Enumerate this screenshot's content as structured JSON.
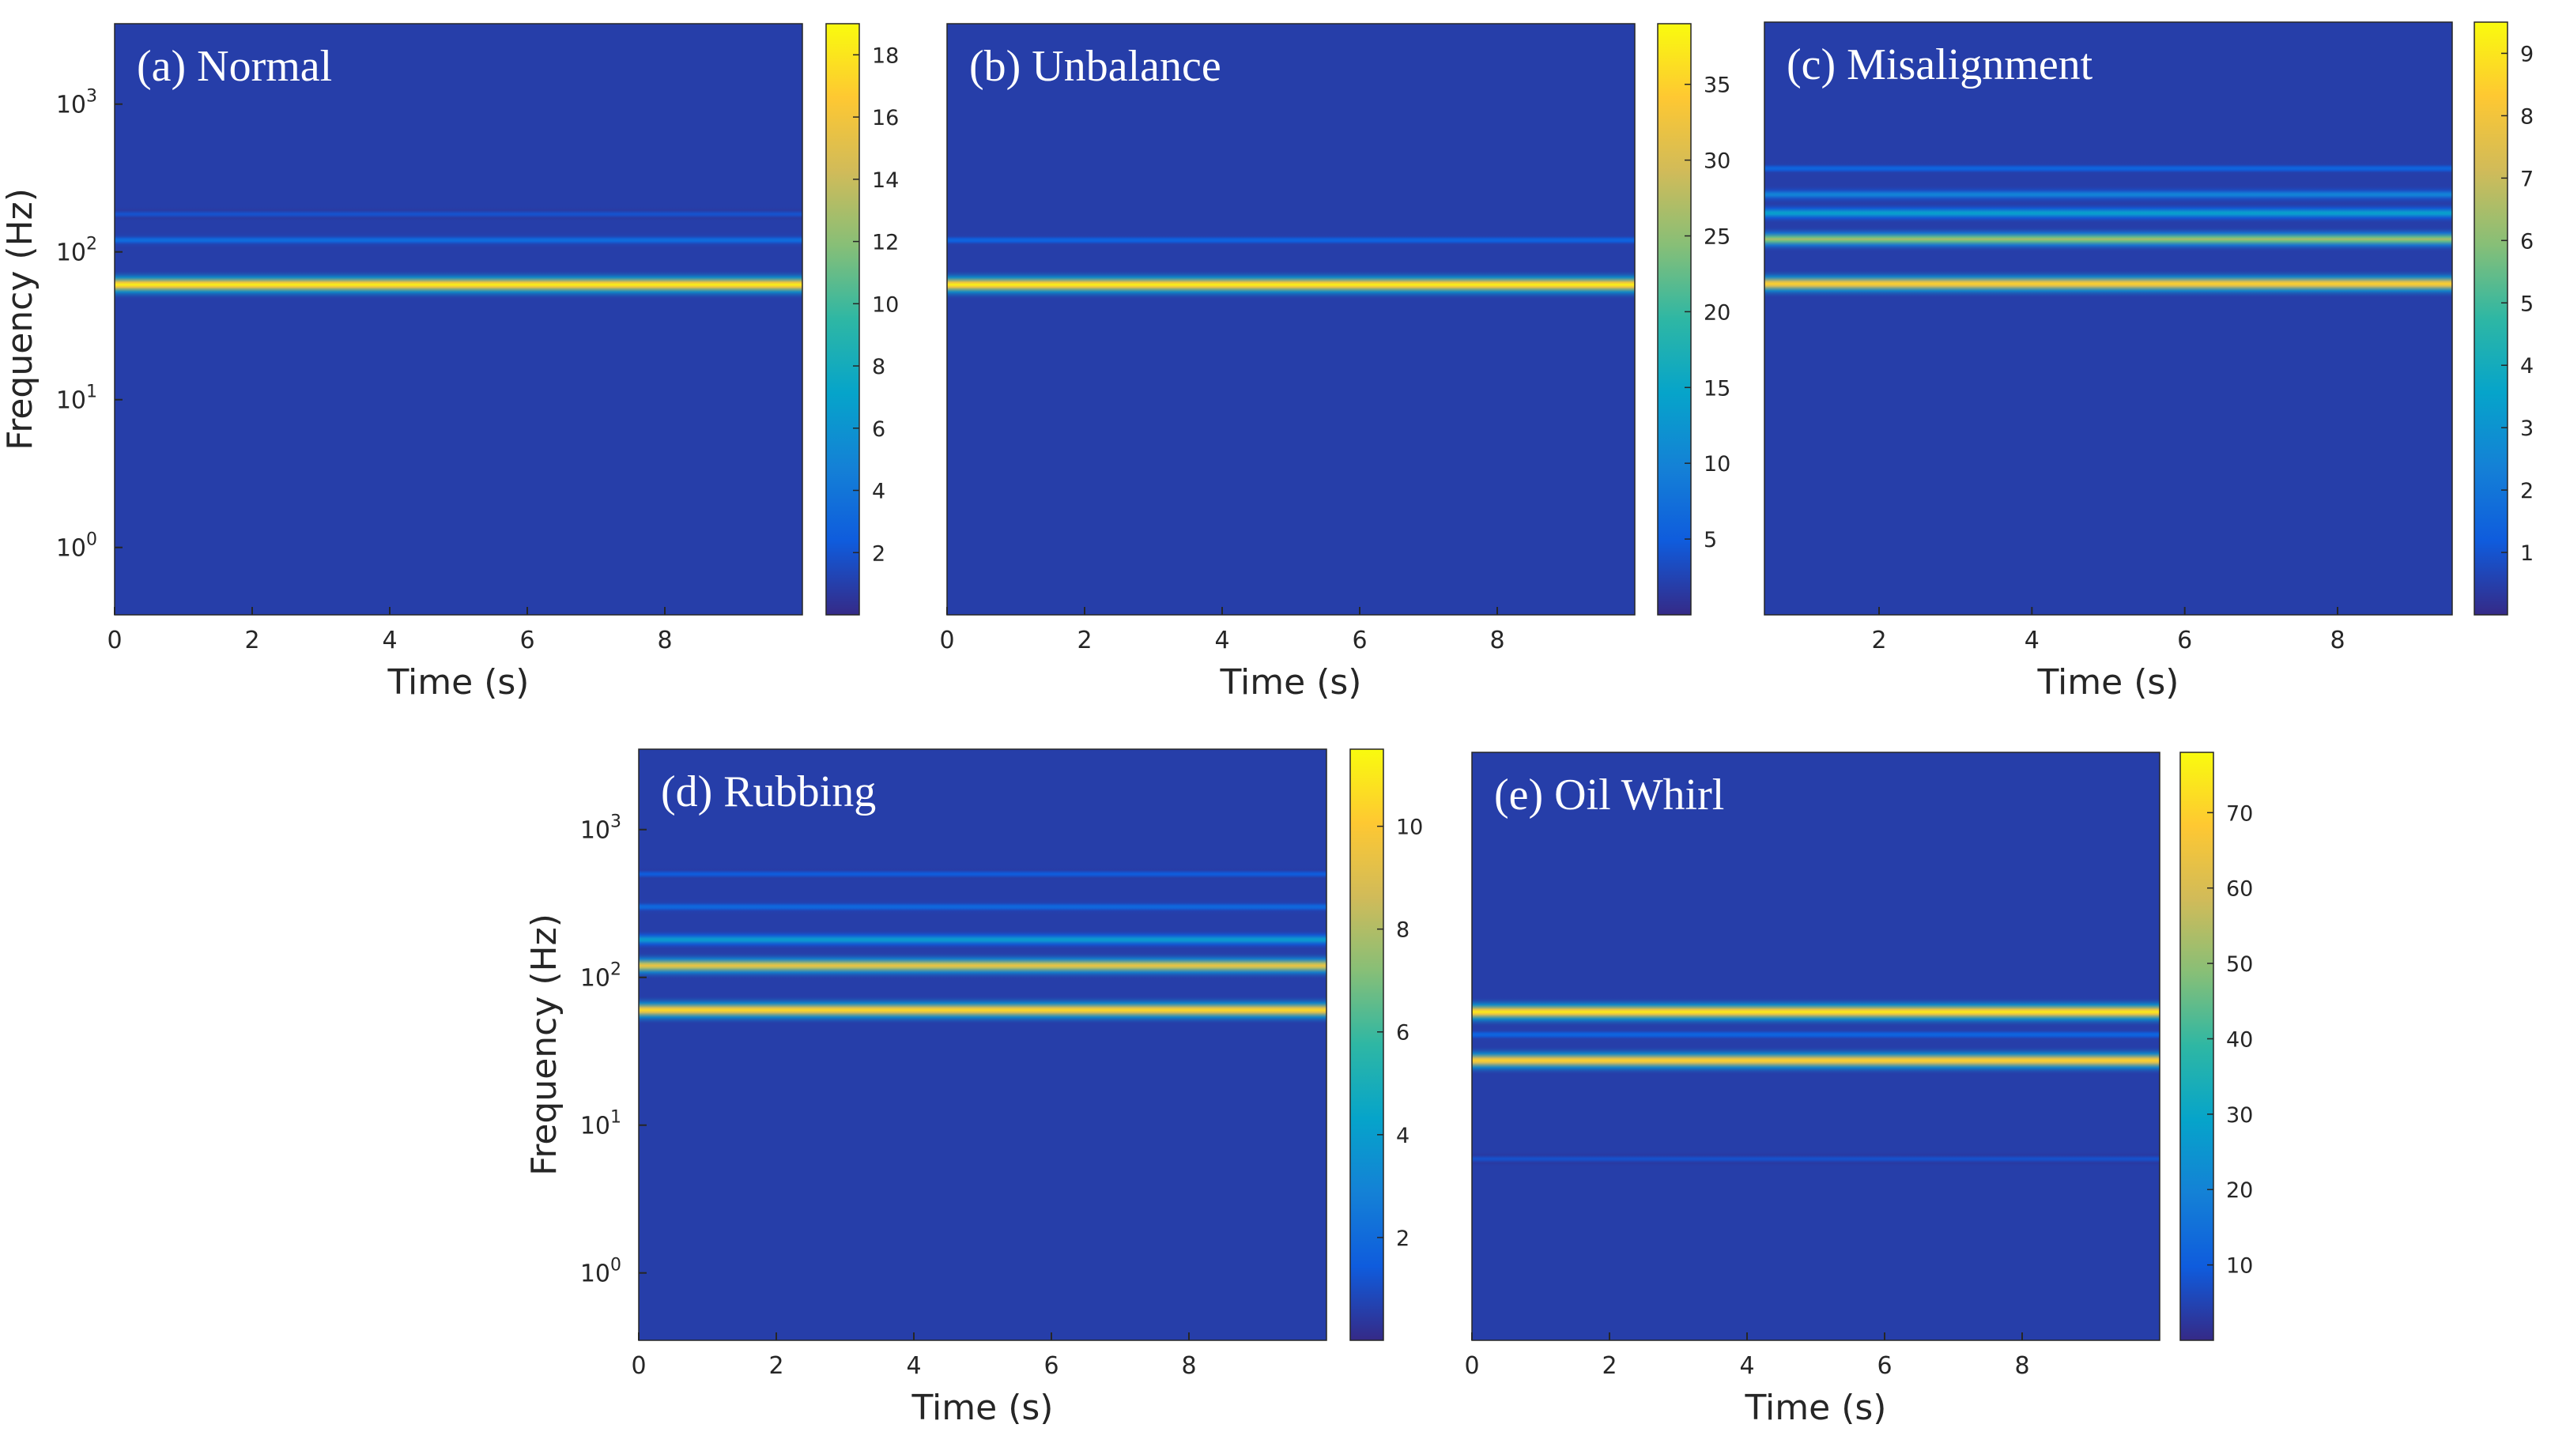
{
  "chart_data": [
    {
      "type": "heatmap",
      "panel_label": "(a) Normal",
      "xlabel": "Time (s)",
      "ylabel": "Frequency (Hz)",
      "xlim": [
        0,
        10
      ],
      "xticks": [
        "0",
        "2",
        "4",
        "6",
        "8"
      ],
      "yscale": "log",
      "ylim": [
        0.35,
        3500
      ],
      "yticks": [
        {
          "base": "10",
          "exp": "0"
        },
        {
          "base": "10",
          "exp": "1"
        },
        {
          "base": "10",
          "exp": "2"
        },
        {
          "base": "10",
          "exp": "3"
        }
      ],
      "colorbar": {
        "colormap": "parula",
        "range": [
          0,
          19
        ],
        "ticks": [
          "2",
          "4",
          "6",
          "8",
          "10",
          "12",
          "14",
          "16",
          "18"
        ]
      },
      "bands": [
        {
          "frequency_hz": 60,
          "magnitude": 18.5
        },
        {
          "frequency_hz": 120,
          "magnitude": 3.5
        },
        {
          "frequency_hz": 180,
          "magnitude": 2.0
        }
      ]
    },
    {
      "type": "heatmap",
      "panel_label": "(b) Unbalance",
      "xlabel": "Time (s)",
      "ylabel": "",
      "xlim": [
        0,
        10
      ],
      "xticks": [
        "0",
        "2",
        "4",
        "6",
        "8"
      ],
      "yscale": "log",
      "ylim": [
        0.35,
        3500
      ],
      "colorbar": {
        "colormap": "parula",
        "range": [
          0,
          39
        ],
        "ticks": [
          "5",
          "10",
          "15",
          "20",
          "25",
          "30",
          "35"
        ]
      },
      "bands": [
        {
          "frequency_hz": 60,
          "magnitude": 38
        },
        {
          "frequency_hz": 120,
          "magnitude": 6
        }
      ]
    },
    {
      "type": "heatmap",
      "panel_label": "(c) Misalignment",
      "xlabel": "Time (s)",
      "ylabel": "",
      "xlim": [
        0.5,
        9.5
      ],
      "xticks": [
        "2",
        "4",
        "6",
        "8"
      ],
      "yscale": "log",
      "ylim": [
        0.35,
        3500
      ],
      "colorbar": {
        "colormap": "parula",
        "range": [
          0,
          9.5
        ],
        "ticks": [
          "1",
          "2",
          "3",
          "4",
          "5",
          "6",
          "7",
          "8",
          "9"
        ]
      },
      "bands": [
        {
          "frequency_hz": 60,
          "magnitude": 8.5
        },
        {
          "frequency_hz": 120,
          "magnitude": 6.5
        },
        {
          "frequency_hz": 180,
          "magnitude": 3.5
        },
        {
          "frequency_hz": 240,
          "magnitude": 2.5
        },
        {
          "frequency_hz": 360,
          "magnitude": 1.5
        }
      ]
    },
    {
      "type": "heatmap",
      "panel_label": "(d) Rubbing",
      "xlabel": "Time (s)",
      "ylabel": "Frequency (Hz)",
      "xlim": [
        0,
        10
      ],
      "xticks": [
        "0",
        "2",
        "4",
        "6",
        "8"
      ],
      "yscale": "log",
      "ylim": [
        0.35,
        3500
      ],
      "yticks": [
        {
          "base": "10",
          "exp": "0"
        },
        {
          "base": "10",
          "exp": "1"
        },
        {
          "base": "10",
          "exp": "2"
        },
        {
          "base": "10",
          "exp": "3"
        }
      ],
      "colorbar": {
        "colormap": "parula",
        "range": [
          0,
          11.5
        ],
        "ticks": [
          "2",
          "4",
          "6",
          "8",
          "10"
        ]
      },
      "bands": [
        {
          "frequency_hz": 60,
          "magnitude": 10.5
        },
        {
          "frequency_hz": 120,
          "magnitude": 9.5
        },
        {
          "frequency_hz": 180,
          "magnitude": 4.0
        },
        {
          "frequency_hz": 300,
          "magnitude": 2.0
        },
        {
          "frequency_hz": 500,
          "magnitude": 1.5
        }
      ]
    },
    {
      "type": "heatmap",
      "panel_label": "(e) Oil Whirl",
      "xlabel": "Time (s)",
      "ylabel": "",
      "xlim": [
        0,
        10
      ],
      "xticks": [
        "0",
        "2",
        "4",
        "6",
        "8"
      ],
      "yscale": "log",
      "ylim": [
        0.35,
        3500
      ],
      "colorbar": {
        "colormap": "parula",
        "range": [
          0,
          78
        ],
        "ticks": [
          "10",
          "20",
          "30",
          "40",
          "50",
          "60",
          "70"
        ]
      },
      "bands": [
        {
          "frequency_hz": 60,
          "magnitude": 75
        },
        {
          "frequency_hz": 28,
          "magnitude": 70
        },
        {
          "frequency_hz": 42,
          "magnitude": 12
        },
        {
          "frequency_hz": 6,
          "magnitude": 8
        }
      ]
    }
  ]
}
